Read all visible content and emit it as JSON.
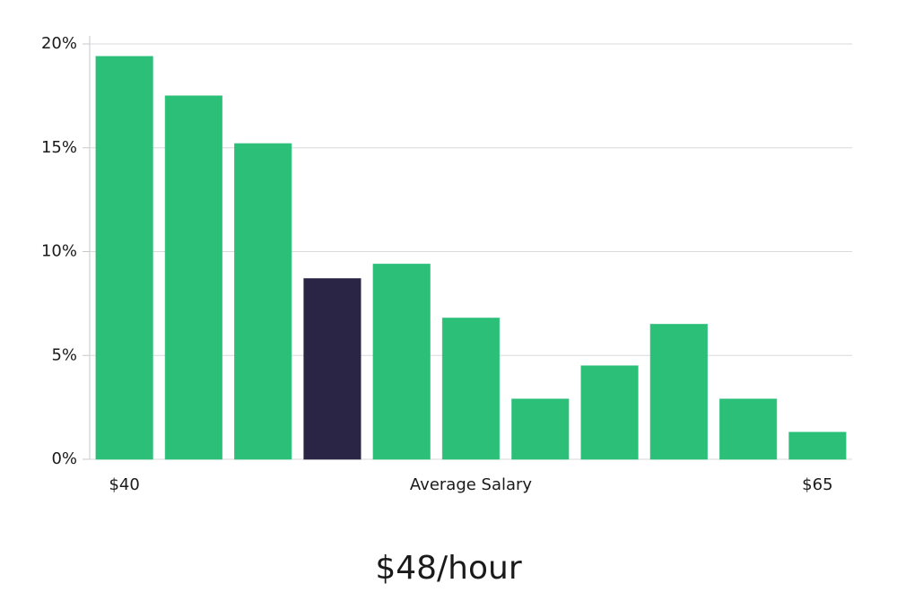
{
  "chart_data": {
    "type": "bar",
    "categories": [
      "$40",
      null,
      null,
      null,
      null,
      null,
      null,
      null,
      null,
      null,
      "$65"
    ],
    "values": [
      19.4,
      17.5,
      15.2,
      8.7,
      9.4,
      6.8,
      2.9,
      4.5,
      6.5,
      2.9,
      1.3
    ],
    "colors": [
      "#2bbf78",
      "#2bbf78",
      "#2bbf78",
      "#2a2545",
      "#2bbf78",
      "#2bbf78",
      "#2bbf78",
      "#2bbf78",
      "#2bbf78",
      "#2bbf78",
      "#2bbf78"
    ],
    "ylim": [
      0,
      20
    ],
    "yticks": [
      {
        "value": 0,
        "label": "0%"
      },
      {
        "value": 5,
        "label": "5%"
      },
      {
        "value": 10,
        "label": "10%"
      },
      {
        "value": 15,
        "label": "15%"
      },
      {
        "value": 20,
        "label": "20%"
      }
    ],
    "grid": true,
    "x_label": "Average Salary",
    "caption": "$48/hour"
  }
}
